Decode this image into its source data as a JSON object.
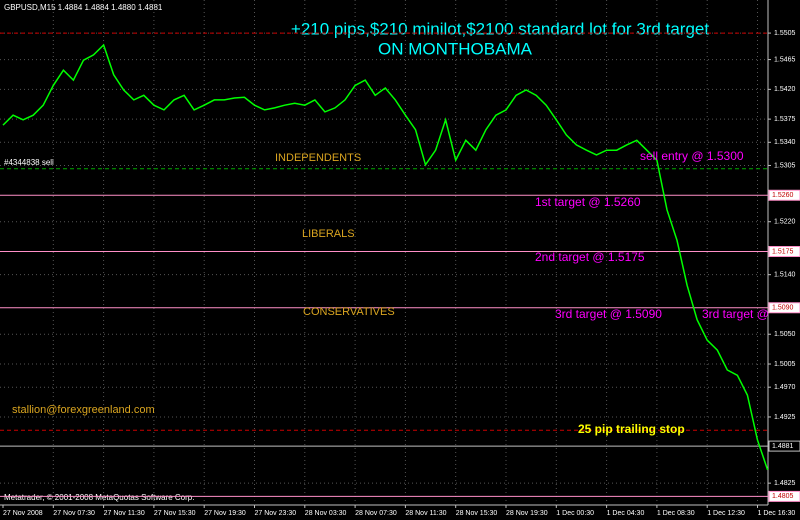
{
  "chart_data": {
    "type": "line",
    "title": "+210 pips,$210 minilot,$2100 standard lot for 3rd target",
    "subtitle": "ON MONTHOBAMA",
    "symbol_info": "GBPUSD,M15  1.4884 1.4884 1.4880 1.4881",
    "copyright": "Metatrader, © 2001-2008 MetaQuotas Software Corp.",
    "order_label": "#4344838 sell",
    "categories": [
      "27 Nov 2008",
      null,
      null,
      null,
      null,
      "27 Nov 07:30",
      null,
      null,
      null,
      null,
      "27 Nov 11:30",
      null,
      null,
      null,
      null,
      "27 Nov 15:30",
      null,
      null,
      null,
      null,
      "27 Nov 19:30",
      null,
      null,
      null,
      null,
      "27 Nov 23:30",
      null,
      null,
      null,
      null,
      "28 Nov 03:30",
      null,
      null,
      null,
      null,
      "28 Nov 07:30",
      null,
      null,
      null,
      null,
      "28 Nov 11:30",
      null,
      null,
      null,
      null,
      "28 Nov 15:30",
      null,
      null,
      null,
      null,
      "28 Nov 19:30",
      null,
      null,
      null,
      null,
      "1 Dec 00:30",
      null,
      null,
      null,
      null,
      "1 Dec 04:30",
      null,
      null,
      null,
      null,
      "1 Dec 08:30",
      null,
      null,
      null,
      null,
      "1 Dec 12:30",
      null,
      null,
      null,
      null,
      "1 Dec 16:30",
      null
    ],
    "series": [
      {
        "name": "GBPUSD",
        "color": "#00ff00",
        "values": [
          1.5366,
          1.5381,
          1.5374,
          1.5381,
          1.5396,
          1.5426,
          1.5449,
          1.5434,
          1.5464,
          1.5472,
          1.5487,
          1.5442,
          1.5419,
          1.5404,
          1.5411,
          1.5396,
          1.5389,
          1.5404,
          1.5411,
          1.5389,
          1.5396,
          1.5404,
          1.5404,
          1.5407,
          1.5408,
          1.5396,
          1.5389,
          1.5392,
          1.5396,
          1.5399,
          1.5396,
          1.5404,
          1.5386,
          1.5392,
          1.5404,
          1.5426,
          1.5434,
          1.5411,
          1.5422,
          1.5404,
          1.5381,
          1.5359,
          1.5306,
          1.5328,
          1.5374,
          1.5313,
          1.5343,
          1.5328,
          1.5359,
          1.5381,
          1.5389,
          1.5411,
          1.5419,
          1.5411,
          1.5396,
          1.5374,
          1.5351,
          1.5336,
          1.5328,
          1.5321,
          1.5328,
          1.5328,
          1.5336,
          1.5343,
          1.5328,
          1.5313,
          1.5238,
          1.5192,
          1.5124,
          1.5072,
          1.5041,
          1.5026,
          1.4996,
          1.4988,
          1.4958,
          1.489,
          1.4845
        ]
      }
    ],
    "ylim": [
      1.4792,
      1.5555
    ],
    "yticks": [
      1.5505,
      1.5465,
      {
        "value": 1.542,
        "label": "1.5420"
      },
      1.5375,
      {
        "value": 1.534,
        "label": "1.5340"
      },
      1.5305,
      {
        "value": 1.522,
        "label": "1.5220"
      },
      {
        "value": 1.514,
        "label": "1.5140"
      },
      {
        "value": 1.505,
        "label": "1.5050"
      },
      1.5005,
      {
        "value": 1.497,
        "label": "1.4970"
      },
      1.4925,
      1.4825
    ],
    "grid": true,
    "levels": [
      {
        "value": 1.5505,
        "color": "#cc0000",
        "dashed": true
      },
      {
        "value": 1.53,
        "color": "#00aa00",
        "dashed": true
      },
      {
        "value": 1.526,
        "label": "1.5260",
        "color": "#ff8fc8"
      },
      {
        "value": 1.5175,
        "label": "1.5175",
        "color": "#ff8fc8"
      },
      {
        "value": 1.509,
        "label": "1.5090",
        "color": "#ff8fc8"
      },
      {
        "value": 1.4905,
        "color": "#cc0000",
        "dashed": true
      },
      {
        "value": 1.4881,
        "label": "1.4881",
        "color": "#c0c0c0"
      },
      {
        "value": 1.4805,
        "label": "1.4805",
        "color": "#ff8fc8"
      }
    ],
    "annotations": [
      {
        "text": "INDEPENDENTS",
        "color": "#daa520"
      },
      {
        "text": "LIBERALS",
        "color": "#daa520"
      },
      {
        "text": "CONSERVATIVES",
        "color": "#daa520"
      },
      {
        "text": "stallion@forexgreenland.com",
        "color": "#daa520"
      },
      {
        "text": "25 pip trailing stop",
        "color": "#ffff00"
      },
      {
        "text": "sell entry @ 1.5300",
        "color": "#ff00ff"
      },
      {
        "text": "1st target @ 1.5260",
        "color": "#ff00ff"
      },
      {
        "text": "2nd target @ 1.5175",
        "color": "#ff00ff"
      },
      {
        "text": "3rd target @ 1.5090",
        "color": "#ff00ff"
      },
      {
        "text": "3rd target @",
        "color": "#ff00ff"
      }
    ]
  }
}
